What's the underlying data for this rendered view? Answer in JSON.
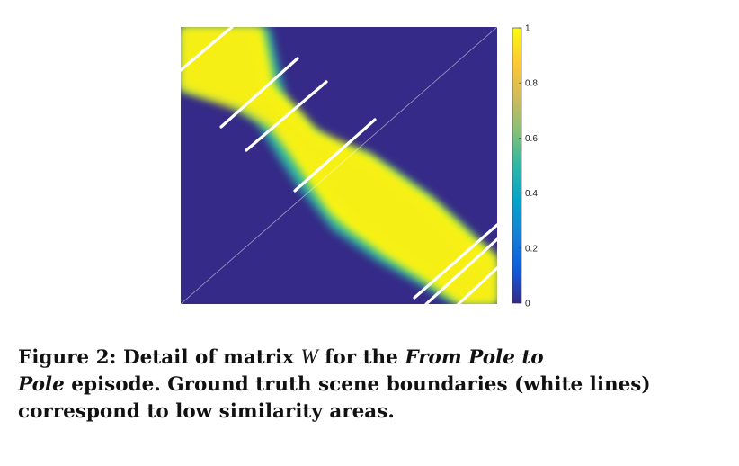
{
  "chart_data": {
    "type": "heatmap",
    "title": "",
    "xlabel": "",
    "ylabel": "",
    "matrix_description_values": {
      "diagonal_band_value": 1,
      "off_band_value": 0
    },
    "colorbar": {
      "range": [
        0,
        1
      ],
      "ticks": [
        "0",
        "0.2",
        "0.4",
        "0.6",
        "0.8",
        "1"
      ],
      "colormap": "parula",
      "colors": [
        "#352a87",
        "#0f5cdd",
        "#1481d6",
        "#06a4ca",
        "#2eb7a4",
        "#87bf77",
        "#d1bb59",
        "#fec832",
        "#f9fb0e"
      ]
    },
    "scene_boundaries_color": "#ffffff"
  },
  "caption": {
    "label": "Figure 2:",
    "text1": "Detail of matrix",
    "var": "W",
    "text2": "for the",
    "title_italic1": "From Pole to",
    "title_italic2": "Pole",
    "text3": "episode. Ground truth scene boundaries (white lines) correspond to low similarity areas."
  }
}
